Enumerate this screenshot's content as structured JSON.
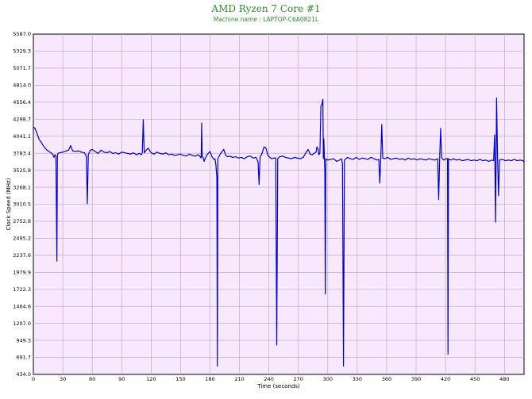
{
  "chart_data": {
    "type": "line",
    "title": "AMD Ryzen 7 Core #1",
    "subtitle": "Machine name : LAPTOP-C6A0821L",
    "xlabel": "Time (seconds)",
    "ylabel": "Clock Speed (MHz)",
    "xlim": [
      0,
      500
    ],
    "ylim": [
      434.0,
      5587.0
    ],
    "x_ticks": [
      "0",
      "30",
      "60",
      "90",
      "120",
      "150",
      "180",
      "210",
      "240",
      "270",
      "300",
      "330",
      "360",
      "390",
      "420",
      "450",
      "480"
    ],
    "y_ticks": [
      "5587.0",
      "5329.3",
      "5071.7",
      "4814.0",
      "4556.4",
      "4298.7",
      "4041.1",
      "3783.4",
      "3525.8",
      "3268.1",
      "3010.5",
      "2752.8",
      "2495.2",
      "2237.6",
      "1979.9",
      "1722.3",
      "1464.6",
      "1207.0",
      "949.3",
      "691.7",
      "434.0"
    ],
    "grid": true,
    "colors": {
      "plot_background": "#f8e8fc",
      "grid": "#b8a0bc",
      "line": "#0000c0",
      "title": "#2e8b2e"
    },
    "series": [
      {
        "name": "",
        "points": [
          [
            0,
            4180
          ],
          [
            1,
            4170
          ],
          [
            2,
            4150
          ],
          [
            3,
            4110
          ],
          [
            4,
            4070
          ],
          [
            5,
            4030
          ],
          [
            6,
            3990
          ],
          [
            8,
            3950
          ],
          [
            10,
            3900
          ],
          [
            12,
            3860
          ],
          [
            14,
            3830
          ],
          [
            16,
            3810
          ],
          [
            18,
            3790
          ],
          [
            20,
            3760
          ],
          [
            21,
            3720
          ],
          [
            22,
            3760
          ],
          [
            23,
            3740
          ],
          [
            24,
            2150
          ],
          [
            24.5,
            3730
          ],
          [
            25,
            3780
          ],
          [
            27,
            3790
          ],
          [
            30,
            3800
          ],
          [
            32,
            3810
          ],
          [
            34,
            3820
          ],
          [
            36,
            3830
          ],
          [
            38,
            3900
          ],
          [
            40,
            3820
          ],
          [
            43,
            3810
          ],
          [
            46,
            3820
          ],
          [
            49,
            3800
          ],
          [
            52,
            3790
          ],
          [
            54,
            3740
          ],
          [
            55,
            3020
          ],
          [
            56,
            3760
          ],
          [
            58,
            3830
          ],
          [
            60,
            3840
          ],
          [
            63,
            3810
          ],
          [
            66,
            3780
          ],
          [
            69,
            3830
          ],
          [
            72,
            3800
          ],
          [
            75,
            3790
          ],
          [
            78,
            3810
          ],
          [
            81,
            3780
          ],
          [
            84,
            3790
          ],
          [
            87,
            3770
          ],
          [
            90,
            3800
          ],
          [
            93,
            3790
          ],
          [
            96,
            3780
          ],
          [
            99,
            3770
          ],
          [
            102,
            3790
          ],
          [
            105,
            3760
          ],
          [
            108,
            3780
          ],
          [
            110,
            3760
          ],
          [
            111,
            3790
          ],
          [
            112,
            4290
          ],
          [
            113,
            3790
          ],
          [
            115,
            3830
          ],
          [
            117,
            3860
          ],
          [
            120,
            3790
          ],
          [
            123,
            3770
          ],
          [
            126,
            3800
          ],
          [
            129,
            3780
          ],
          [
            132,
            3770
          ],
          [
            135,
            3790
          ],
          [
            138,
            3760
          ],
          [
            141,
            3770
          ],
          [
            144,
            3750
          ],
          [
            147,
            3760
          ],
          [
            150,
            3770
          ],
          [
            153,
            3750
          ],
          [
            156,
            3740
          ],
          [
            159,
            3770
          ],
          [
            162,
            3750
          ],
          [
            165,
            3740
          ],
          [
            168,
            3760
          ],
          [
            170,
            3730
          ],
          [
            171,
            3710
          ],
          [
            171.5,
            4240
          ],
          [
            172,
            3740
          ],
          [
            173,
            3720
          ],
          [
            174,
            3660
          ],
          [
            175,
            3700
          ],
          [
            177,
            3760
          ],
          [
            180,
            3810
          ],
          [
            182,
            3730
          ],
          [
            184,
            3690
          ],
          [
            185,
            3700
          ],
          [
            186,
            3610
          ],
          [
            187,
            3400
          ],
          [
            187.5,
            560
          ],
          [
            188,
            3700
          ],
          [
            190,
            3760
          ],
          [
            192,
            3800
          ],
          [
            194,
            3840
          ],
          [
            196,
            3750
          ],
          [
            198,
            3730
          ],
          [
            200,
            3740
          ],
          [
            203,
            3720
          ],
          [
            206,
            3730
          ],
          [
            209,
            3710
          ],
          [
            212,
            3720
          ],
          [
            215,
            3700
          ],
          [
            218,
            3730
          ],
          [
            221,
            3740
          ],
          [
            224,
            3710
          ],
          [
            227,
            3720
          ],
          [
            229,
            3650
          ],
          [
            230,
            3310
          ],
          [
            231,
            3720
          ],
          [
            233,
            3780
          ],
          [
            235,
            3880
          ],
          [
            237,
            3860
          ],
          [
            239,
            3750
          ],
          [
            241,
            3720
          ],
          [
            243,
            3700
          ],
          [
            245,
            3710
          ],
          [
            247,
            3710
          ],
          [
            248,
            880
          ],
          [
            249,
            3700
          ],
          [
            251,
            3730
          ],
          [
            254,
            3740
          ],
          [
            257,
            3720
          ],
          [
            260,
            3710
          ],
          [
            263,
            3700
          ],
          [
            266,
            3720
          ],
          [
            269,
            3710
          ],
          [
            272,
            3700
          ],
          [
            275,
            3720
          ],
          [
            278,
            3800
          ],
          [
            280,
            3840
          ],
          [
            282,
            3770
          ],
          [
            284,
            3760
          ],
          [
            286,
            3780
          ],
          [
            288,
            3800
          ],
          [
            289,
            3880
          ],
          [
            290,
            3850
          ],
          [
            291,
            3760
          ],
          [
            292,
            3790
          ],
          [
            293,
            4500
          ],
          [
            294,
            4520
          ],
          [
            295,
            4600
          ],
          [
            295.5,
            3700
          ],
          [
            296,
            4000
          ],
          [
            297,
            3500
          ],
          [
            297.5,
            1650
          ],
          [
            298,
            3700
          ],
          [
            300,
            3680
          ],
          [
            303,
            3690
          ],
          [
            306,
            3700
          ],
          [
            309,
            3660
          ],
          [
            312,
            3680
          ],
          [
            314,
            3700
          ],
          [
            315,
            3620
          ],
          [
            316,
            560
          ],
          [
            317,
            3680
          ],
          [
            320,
            3720
          ],
          [
            323,
            3700
          ],
          [
            326,
            3690
          ],
          [
            329,
            3720
          ],
          [
            332,
            3690
          ],
          [
            335,
            3710
          ],
          [
            338,
            3700
          ],
          [
            341,
            3690
          ],
          [
            344,
            3720
          ],
          [
            347,
            3700
          ],
          [
            350,
            3680
          ],
          [
            352,
            3690
          ],
          [
            353,
            3330
          ],
          [
            354,
            3700
          ],
          [
            355,
            4220
          ],
          [
            356,
            3710
          ],
          [
            358,
            3700
          ],
          [
            361,
            3720
          ],
          [
            364,
            3690
          ],
          [
            367,
            3700
          ],
          [
            370,
            3710
          ],
          [
            373,
            3690
          ],
          [
            376,
            3700
          ],
          [
            379,
            3680
          ],
          [
            382,
            3710
          ],
          [
            385,
            3690
          ],
          [
            388,
            3700
          ],
          [
            391,
            3680
          ],
          [
            394,
            3700
          ],
          [
            397,
            3690
          ],
          [
            400,
            3680
          ],
          [
            403,
            3700
          ],
          [
            406,
            3690
          ],
          [
            409,
            3680
          ],
          [
            412,
            3700
          ],
          [
            413,
            3080
          ],
          [
            414,
            3700
          ],
          [
            415,
            4160
          ],
          [
            416,
            3720
          ],
          [
            418,
            3680
          ],
          [
            420,
            3700
          ],
          [
            422,
            3700
          ],
          [
            422.5,
            740
          ],
          [
            423,
            3700
          ],
          [
            424,
            3690
          ],
          [
            426,
            3680
          ],
          [
            428,
            3700
          ],
          [
            431,
            3680
          ],
          [
            434,
            3690
          ],
          [
            437,
            3670
          ],
          [
            440,
            3680
          ],
          [
            443,
            3690
          ],
          [
            446,
            3670
          ],
          [
            449,
            3680
          ],
          [
            452,
            3670
          ],
          [
            455,
            3690
          ],
          [
            458,
            3670
          ],
          [
            461,
            3680
          ],
          [
            464,
            3660
          ],
          [
            467,
            3680
          ],
          [
            469,
            3670
          ],
          [
            470,
            4060
          ],
          [
            471,
            2740
          ],
          [
            472,
            4620
          ],
          [
            473,
            3720
          ],
          [
            474,
            3140
          ],
          [
            475,
            3680
          ],
          [
            478,
            3690
          ],
          [
            481,
            3670
          ],
          [
            484,
            3680
          ],
          [
            487,
            3670
          ],
          [
            490,
            3690
          ],
          [
            493,
            3670
          ],
          [
            496,
            3680
          ],
          [
            499,
            3670
          ],
          [
            500,
            3650
          ]
        ]
      }
    ]
  }
}
